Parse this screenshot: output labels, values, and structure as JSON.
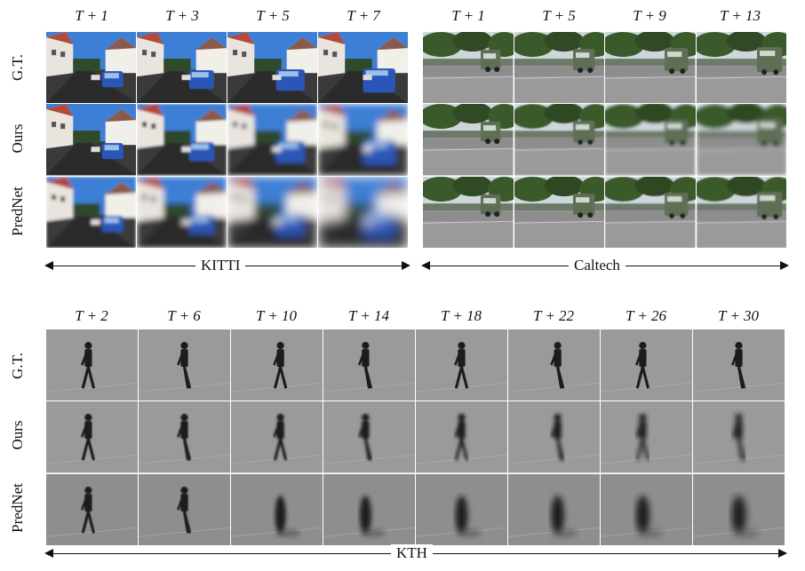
{
  "kitti": {
    "name": "KITTI",
    "frames": [
      "T + 1",
      "T + 3",
      "T + 5",
      "T + 7"
    ],
    "rows": [
      "G.T.",
      "Ours",
      "PredNet"
    ]
  },
  "caltech": {
    "name": "Caltech",
    "frames": [
      "T + 1",
      "T + 5",
      "T + 9",
      "T + 13"
    ]
  },
  "kth": {
    "name": "KTH",
    "frames": [
      "T + 2",
      "T + 6",
      "T + 10",
      "T + 14",
      "T + 18",
      "T + 22",
      "T + 26",
      "T + 30"
    ],
    "rows": [
      "G.T.",
      "Ours",
      "PredNet"
    ]
  },
  "colors": {
    "kitti_sky": "#3d7fd4",
    "kitti_road": "#3a3a3a",
    "kitti_car": "#2a56b8",
    "caltech_tree": "#3b5a2c",
    "caltech_road": "#8d8d8d",
    "kth_bg": "#9a9a9a",
    "kth_person": "#1c1c1c"
  }
}
